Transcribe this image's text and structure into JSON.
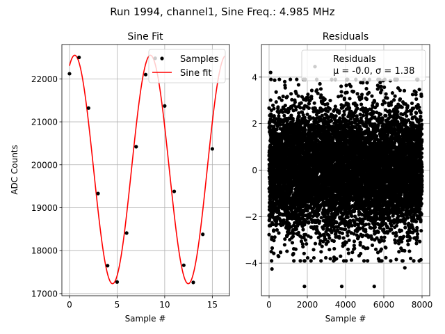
{
  "suptitle": "Run 1994, channel1, Sine Freq.: 4.985 MHz",
  "colors": {
    "points": "#000000",
    "fit": "#ff0000",
    "grid": "#b0b0b0",
    "axes": "#000000"
  },
  "chart_data": [
    {
      "type": "scatter+line",
      "title": "Sine Fit",
      "xlabel": "Sample #",
      "ylabel": "ADC Counts",
      "xlim": [
        -0.8,
        16.8
      ],
      "ylim": [
        16950,
        22800
      ],
      "xticks": [
        0,
        5,
        10,
        15
      ],
      "yticks": [
        17000,
        18000,
        19000,
        20000,
        21000,
        22000
      ],
      "grid": true,
      "legend_position": "top-right",
      "samples": {
        "name": "Samples",
        "x": [
          0,
          1,
          2,
          3,
          4,
          5,
          6,
          7,
          8,
          9,
          10,
          11,
          12,
          13,
          14,
          15
        ],
        "y": [
          22120,
          22500,
          21320,
          19330,
          17650,
          17270,
          18410,
          20420,
          22100,
          22480,
          21370,
          19380,
          17660,
          17260,
          18380,
          20370
        ]
      },
      "fit": {
        "name": "Sine fit",
        "amplitude": 2660,
        "offset": 19890,
        "period": 7.95,
        "phase_x": -1.44,
        "x_range": [
          0,
          16.3
        ]
      }
    },
    {
      "type": "scatter",
      "title": "Residuals",
      "xlabel": "Sample #",
      "ylabel": "",
      "xlim": [
        -400,
        8400
      ],
      "ylim": [
        -5.4,
        5.4
      ],
      "xticks": [
        0,
        2000,
        4000,
        6000,
        8000
      ],
      "yticks": [
        -4,
        -2,
        0,
        2,
        4
      ],
      "grid": true,
      "legend_position": "top-right",
      "legend": {
        "name": "Residuals",
        "stats": "μ = -0.0, σ = 1.38"
      },
      "distribution": {
        "count": 8000,
        "x_range": [
          0,
          8000
        ],
        "mean": 0.0,
        "sigma": 1.38,
        "seed": 1994
      },
      "extremes": [
        {
          "x": 80,
          "y": 4.2
        },
        {
          "x": 2400,
          "y": 4.45
        },
        {
          "x": 4700,
          "y": 4.4
        },
        {
          "x": 1850,
          "y": -5.0
        },
        {
          "x": 3800,
          "y": -5.0
        },
        {
          "x": 5500,
          "y": -5.0
        },
        {
          "x": 150,
          "y": -4.25
        },
        {
          "x": 7100,
          "y": -4.2
        }
      ]
    }
  ]
}
